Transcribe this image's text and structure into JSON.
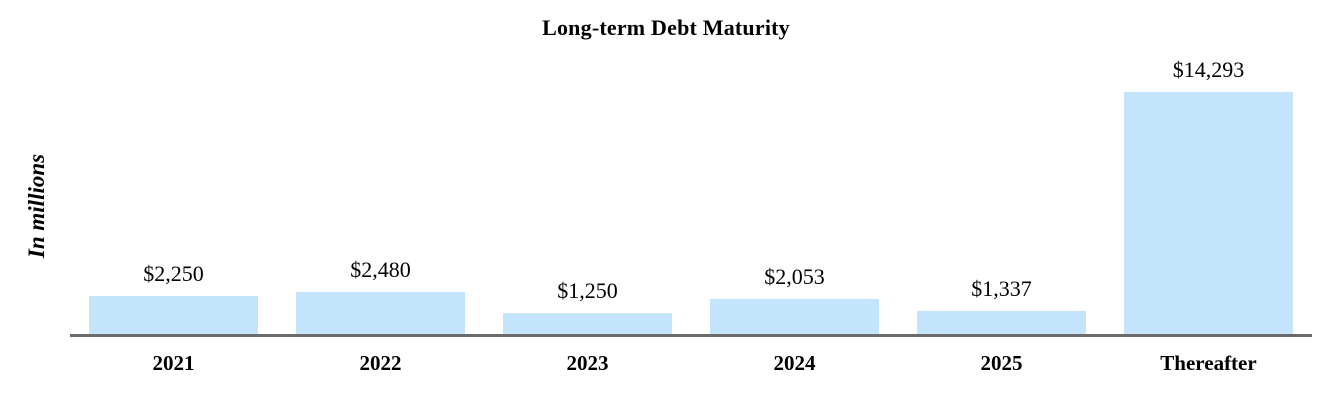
{
  "chart_data": {
    "type": "bar",
    "title": "Long-term Debt Maturity",
    "ylabel": "In millions",
    "xlabel": "",
    "categories": [
      "2021",
      "2022",
      "2023",
      "2024",
      "2025",
      "Thereafter"
    ],
    "values": [
      2250,
      2480,
      1250,
      2053,
      1337,
      14293
    ],
    "value_labels": [
      "$2,250",
      "$2,480",
      "$1,250",
      "$2,053",
      "$1,337",
      "$14,293"
    ],
    "ylim": [
      0,
      15000
    ],
    "grid": false,
    "legend": null,
    "bar_color": "#c4e4fb",
    "axis_color": "#6b6b6b",
    "text_color": "#000000",
    "background_color": "#ffffff"
  }
}
